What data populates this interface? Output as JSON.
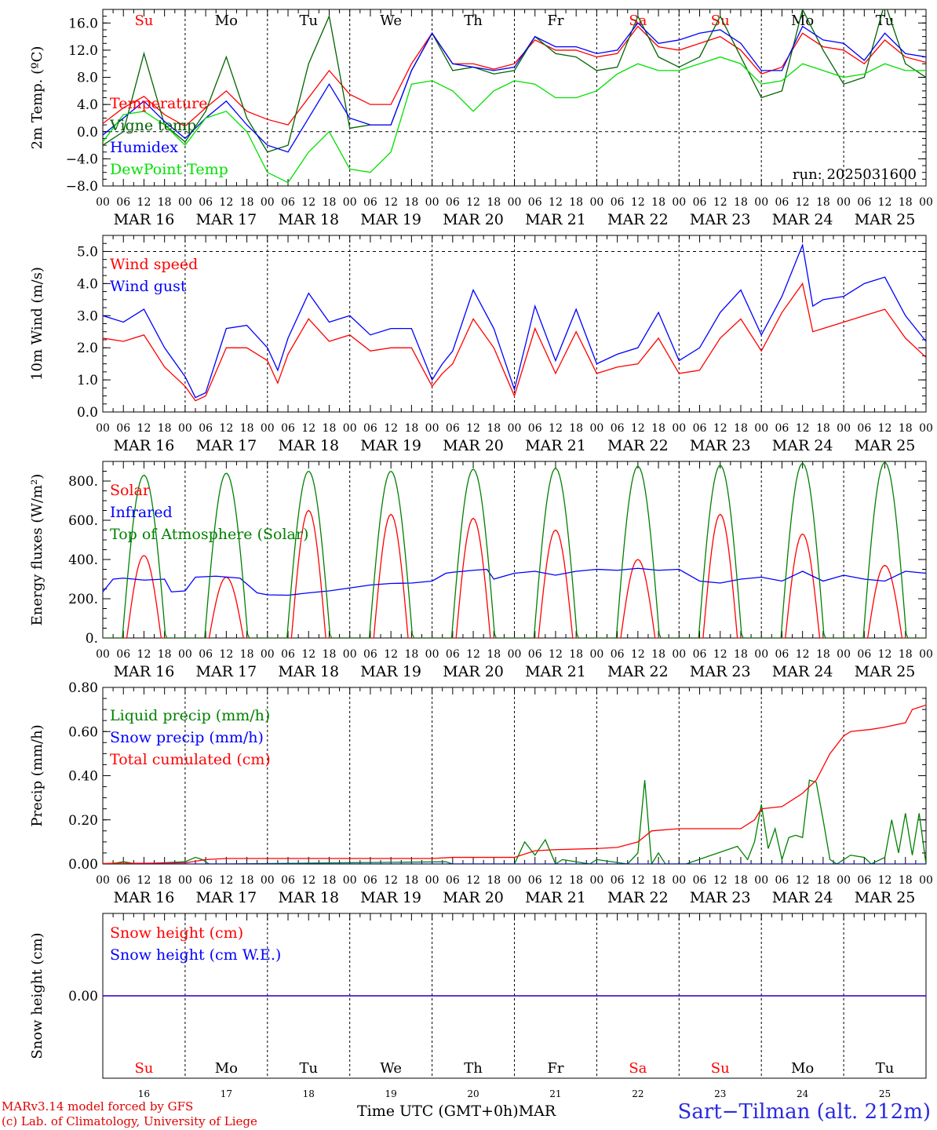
{
  "footer": {
    "model_note": "MARv3.14 model forced by GFS",
    "credit_note": "(c) Lab. of Climatology, University of Liege",
    "xaxis_label": "Time UTC (GMT+0h)",
    "month_label": "MAR",
    "station": "Sart−Tilman (alt. 212m)"
  },
  "run_label": "run: 2025031600",
  "days": [
    "Su",
    "Mo",
    "Tu",
    "We",
    "Th",
    "Fr",
    "Sa",
    "Su",
    "Mo",
    "Tu"
  ],
  "weekend_days": [
    0,
    6,
    7
  ],
  "date_labels": [
    "MAR 16",
    "MAR 17",
    "MAR 18",
    "MAR 19",
    "MAR 20",
    "MAR 21",
    "MAR 22",
    "MAR 23",
    "MAR 24",
    "MAR 25"
  ],
  "day_numbers": [
    "16",
    "17",
    "18",
    "19",
    "20",
    "21",
    "22",
    "23",
    "24",
    "25"
  ],
  "hour_ticks": [
    "00",
    "06",
    "12",
    "18"
  ],
  "chart_data": [
    {
      "type": "line",
      "ylabel": "2m Temp. (ºC)",
      "ylim": [
        -8,
        18
      ],
      "yticks": [
        -8,
        -4,
        0,
        4,
        8,
        12,
        16
      ],
      "ytick_labels": [
        "−8.0",
        "−4.0",
        "0.0",
        "4.0",
        "8.0",
        "12.0",
        "16.0"
      ],
      "x_hours_range": [
        0,
        240
      ],
      "series": [
        {
          "name": "Temperature",
          "color": "#ff0000",
          "x": [
            0,
            6,
            12,
            18,
            24,
            30,
            36,
            42,
            48,
            54,
            60,
            66,
            72,
            78,
            84,
            90,
            96,
            102,
            108,
            114,
            120,
            126,
            132,
            138,
            144,
            150,
            156,
            162,
            168,
            174,
            180,
            186,
            192,
            198,
            204,
            210,
            216,
            222,
            228,
            234,
            240
          ],
          "values": [
            1.2,
            3.5,
            5.2,
            2.5,
            0.8,
            3.5,
            6,
            3,
            1.8,
            1,
            5,
            9,
            5.5,
            4,
            4,
            10,
            14.5,
            10,
            10,
            9.2,
            10,
            13.5,
            12,
            12,
            11,
            11.5,
            15.5,
            12.5,
            12,
            13,
            14,
            12,
            8.5,
            9.5,
            14.5,
            12.5,
            12,
            10,
            13.5,
            11,
            10.2
          ]
        },
        {
          "name": "Vigne temp",
          "color": "#006400",
          "x": [
            0,
            6,
            12,
            18,
            24,
            30,
            36,
            42,
            48,
            54,
            60,
            66,
            72,
            78,
            84,
            90,
            96,
            102,
            108,
            114,
            120,
            126,
            132,
            138,
            144,
            150,
            156,
            162,
            168,
            174,
            180,
            186,
            192,
            198,
            204,
            210,
            216,
            222,
            228,
            234,
            240
          ],
          "values": [
            -2,
            0,
            11.5,
            1,
            -1.5,
            3,
            11,
            2,
            -3,
            -2,
            10,
            17,
            0.5,
            1,
            1,
            9,
            14.5,
            9,
            9.5,
            8.5,
            9,
            14,
            11.5,
            11,
            9,
            9.5,
            17,
            11,
            9.5,
            11,
            17,
            11,
            5,
            6,
            18,
            12,
            7,
            8,
            19,
            10,
            8
          ]
        },
        {
          "name": "Humidex",
          "color": "#0000ff",
          "x": [
            0,
            6,
            12,
            18,
            24,
            30,
            36,
            42,
            48,
            54,
            60,
            66,
            72,
            78,
            84,
            90,
            96,
            102,
            108,
            114,
            120,
            126,
            132,
            138,
            144,
            150,
            156,
            162,
            168,
            174,
            180,
            186,
            192,
            198,
            204,
            210,
            216,
            222,
            228,
            234,
            240
          ],
          "values": [
            -0.5,
            2,
            4.5,
            1.5,
            -1,
            2,
            4.5,
            1,
            -2,
            -3,
            2,
            7,
            2,
            1,
            1,
            9,
            14.5,
            10,
            9.5,
            9,
            9.5,
            14,
            12.5,
            12.5,
            11.5,
            12,
            16,
            13,
            13.5,
            14.5,
            15,
            13,
            9,
            9,
            15.5,
            13.5,
            13,
            10.5,
            14.5,
            11.5,
            11
          ]
        },
        {
          "name": "DewPoint Temp",
          "color": "#00e000",
          "x": [
            0,
            6,
            12,
            18,
            24,
            30,
            36,
            42,
            48,
            54,
            60,
            66,
            72,
            78,
            84,
            90,
            96,
            102,
            108,
            114,
            120,
            126,
            132,
            138,
            144,
            150,
            156,
            162,
            168,
            174,
            180,
            186,
            192,
            198,
            204,
            210,
            216,
            222,
            228,
            234,
            240
          ],
          "values": [
            -1.5,
            2.5,
            3,
            1,
            -2,
            2,
            3,
            0,
            -6,
            -7.5,
            -3,
            0,
            -5.5,
            -6,
            -3,
            7,
            7.5,
            6,
            3,
            6,
            7.5,
            7,
            5,
            5,
            6,
            8.5,
            10,
            9,
            9,
            10,
            11,
            10,
            7,
            7.5,
            10,
            9,
            8,
            8.5,
            10,
            9,
            9
          ]
        }
      ]
    },
    {
      "type": "line",
      "ylabel": "10m Wind (m/s)",
      "ylim": [
        0,
        5.5
      ],
      "yticks": [
        0,
        1,
        2,
        3,
        4,
        5
      ],
      "ytick_labels": [
        "0.0",
        "1.0",
        "2.0",
        "3.0",
        "4.0",
        "5.0"
      ],
      "x_hours_range": [
        0,
        240
      ],
      "series": [
        {
          "name": "Wind speed",
          "color": "#ff0000",
          "x": [
            0,
            6,
            12,
            18,
            24,
            27,
            30,
            36,
            42,
            48,
            51,
            54,
            60,
            66,
            72,
            78,
            84,
            90,
            96,
            99,
            102,
            108,
            114,
            120,
            126,
            132,
            138,
            144,
            150,
            156,
            162,
            168,
            174,
            180,
            186,
            192,
            198,
            204,
            207,
            210,
            216,
            222,
            228,
            234,
            240
          ],
          "values": [
            2.3,
            2.2,
            2.4,
            1.4,
            0.8,
            0.35,
            0.5,
            2.0,
            2.0,
            1.6,
            0.9,
            1.8,
            2.9,
            2.2,
            2.4,
            1.9,
            2.0,
            2.0,
            0.8,
            1.2,
            1.5,
            2.9,
            2.0,
            0.5,
            2.6,
            1.2,
            2.5,
            1.2,
            1.4,
            1.5,
            2.3,
            1.2,
            1.3,
            2.3,
            2.9,
            1.9,
            3.1,
            4.0,
            2.5,
            2.6,
            2.8,
            3.0,
            3.2,
            2.3,
            1.7
          ]
        },
        {
          "name": "Wind gust",
          "color": "#0000ff",
          "x": [
            0,
            6,
            12,
            18,
            24,
            27,
            30,
            36,
            42,
            48,
            51,
            54,
            60,
            66,
            72,
            78,
            84,
            90,
            96,
            99,
            102,
            108,
            114,
            120,
            126,
            132,
            138,
            144,
            150,
            156,
            162,
            168,
            174,
            180,
            186,
            192,
            198,
            204,
            207,
            210,
            216,
            222,
            228,
            234,
            240
          ],
          "values": [
            3.0,
            2.8,
            3.2,
            2.0,
            1.1,
            0.45,
            0.6,
            2.6,
            2.7,
            2.0,
            1.3,
            2.3,
            3.7,
            2.8,
            3.0,
            2.4,
            2.6,
            2.6,
            1.0,
            1.5,
            1.9,
            3.8,
            2.6,
            0.7,
            3.3,
            1.6,
            3.2,
            1.5,
            1.8,
            2.0,
            3.1,
            1.6,
            2.0,
            3.1,
            3.8,
            2.4,
            3.6,
            5.2,
            3.3,
            3.5,
            3.6,
            4.0,
            4.2,
            3.0,
            2.2
          ]
        }
      ]
    },
    {
      "type": "line",
      "ylabel": "Energy fluxes (W/m²)",
      "ylim": [
        0,
        900
      ],
      "yticks": [
        0,
        200,
        400,
        600,
        800
      ],
      "ytick_labels": [
        "0.",
        "200.",
        "400.",
        "600.",
        "800."
      ],
      "x_hours_range": [
        0,
        240
      ],
      "solar_peaks": [
        420,
        310,
        650,
        630,
        610,
        550,
        400,
        630,
        530,
        370
      ],
      "toa_peaks": [
        830,
        840,
        850,
        850,
        860,
        865,
        875,
        880,
        890,
        895
      ],
      "series": [
        {
          "name": "Solar",
          "color": "#ff0000"
        },
        {
          "name": "Infrared",
          "color": "#0000ff",
          "x": [
            0,
            3,
            6,
            12,
            18,
            20,
            24,
            27,
            33,
            40,
            45,
            48,
            54,
            60,
            66,
            72,
            78,
            84,
            90,
            96,
            100,
            102,
            108,
            112,
            114,
            120,
            126,
            132,
            138,
            144,
            150,
            156,
            162,
            168,
            174,
            180,
            186,
            192,
            198,
            204,
            210,
            216,
            222,
            228,
            234,
            240
          ],
          "values": [
            235,
            300,
            305,
            295,
            300,
            235,
            240,
            310,
            315,
            305,
            230,
            220,
            218,
            230,
            240,
            255,
            270,
            278,
            280,
            290,
            330,
            335,
            345,
            350,
            300,
            330,
            340,
            320,
            340,
            350,
            345,
            355,
            345,
            350,
            290,
            280,
            300,
            310,
            290,
            340,
            290,
            320,
            300,
            290,
            340,
            330
          ]
        },
        {
          "name": "Top of Atmosphere (Solar)",
          "color": "#008000"
        }
      ]
    },
    {
      "type": "line",
      "ylabel": "Precip (mm/h)",
      "ylim": [
        0,
        0.8
      ],
      "yticks": [
        0,
        0.2,
        0.4,
        0.6,
        0.8
      ],
      "ytick_labels": [
        "0.00",
        "0.20",
        "0.40",
        "0.60",
        "0.80"
      ],
      "x_hours_range": [
        0,
        240
      ],
      "series": [
        {
          "name": "Liquid precip (mm/h)",
          "color": "#008000",
          "x": [
            0,
            4,
            6,
            10,
            24,
            27,
            29,
            31,
            36,
            100,
            102,
            120,
            123,
            126,
            129,
            132,
            134,
            142,
            144,
            153,
            156,
            158,
            160,
            162,
            164,
            170,
            185,
            188,
            190,
            192,
            194,
            196,
            198,
            200,
            202,
            204,
            206,
            208,
            210,
            212,
            214,
            218,
            222,
            224,
            228,
            230,
            232,
            234,
            236,
            238,
            240
          ],
          "values": [
            0,
            0.005,
            0.01,
            0,
            0.01,
            0.03,
            0.02,
            0,
            0,
            0.01,
            0,
            0,
            0.1,
            0.04,
            0.11,
            0,
            0.02,
            0,
            0.02,
            0,
            0.05,
            0.38,
            0,
            0.05,
            0,
            0,
            0.08,
            0.02,
            0.1,
            0.27,
            0.07,
            0.16,
            0.02,
            0.12,
            0.13,
            0.12,
            0.38,
            0.37,
            0.2,
            0.02,
            0.0,
            0.04,
            0.03,
            0,
            0.03,
            0.2,
            0.05,
            0.23,
            0.04,
            0.23,
            0.0
          ]
        },
        {
          "name": "Snow precip (mm/h)",
          "color": "#0000ff",
          "x": [
            0,
            240
          ],
          "values": [
            0,
            0
          ]
        },
        {
          "name": "Total cumulated (cm)",
          "color": "#ff0000",
          "x": [
            0,
            24,
            30,
            36,
            96,
            102,
            120,
            126,
            132,
            144,
            150,
            156,
            160,
            168,
            186,
            190,
            192,
            195,
            198,
            204,
            208,
            212,
            216,
            218,
            224,
            228,
            234,
            236,
            240
          ],
          "values": [
            0.002,
            0.005,
            0.02,
            0.025,
            0.025,
            0.03,
            0.03,
            0.06,
            0.065,
            0.07,
            0.075,
            0.1,
            0.15,
            0.16,
            0.16,
            0.2,
            0.25,
            0.255,
            0.26,
            0.32,
            0.38,
            0.5,
            0.58,
            0.6,
            0.61,
            0.62,
            0.64,
            0.7,
            0.72
          ]
        }
      ]
    },
    {
      "type": "line",
      "ylabel": "Snow height (cm)",
      "ylim": [
        -1,
        1
      ],
      "yticks": [
        0
      ],
      "ytick_labels": [
        "0.00"
      ],
      "x_hours_range": [
        0,
        240
      ],
      "series": [
        {
          "name": "Snow height (cm)",
          "color": "#ff0000",
          "x": [
            0,
            240
          ],
          "values": [
            0,
            0
          ]
        },
        {
          "name": "Snow height (cm W.E.)",
          "color": "#0000ff",
          "x": [
            0,
            240
          ],
          "values": [
            0,
            0
          ]
        }
      ]
    }
  ]
}
